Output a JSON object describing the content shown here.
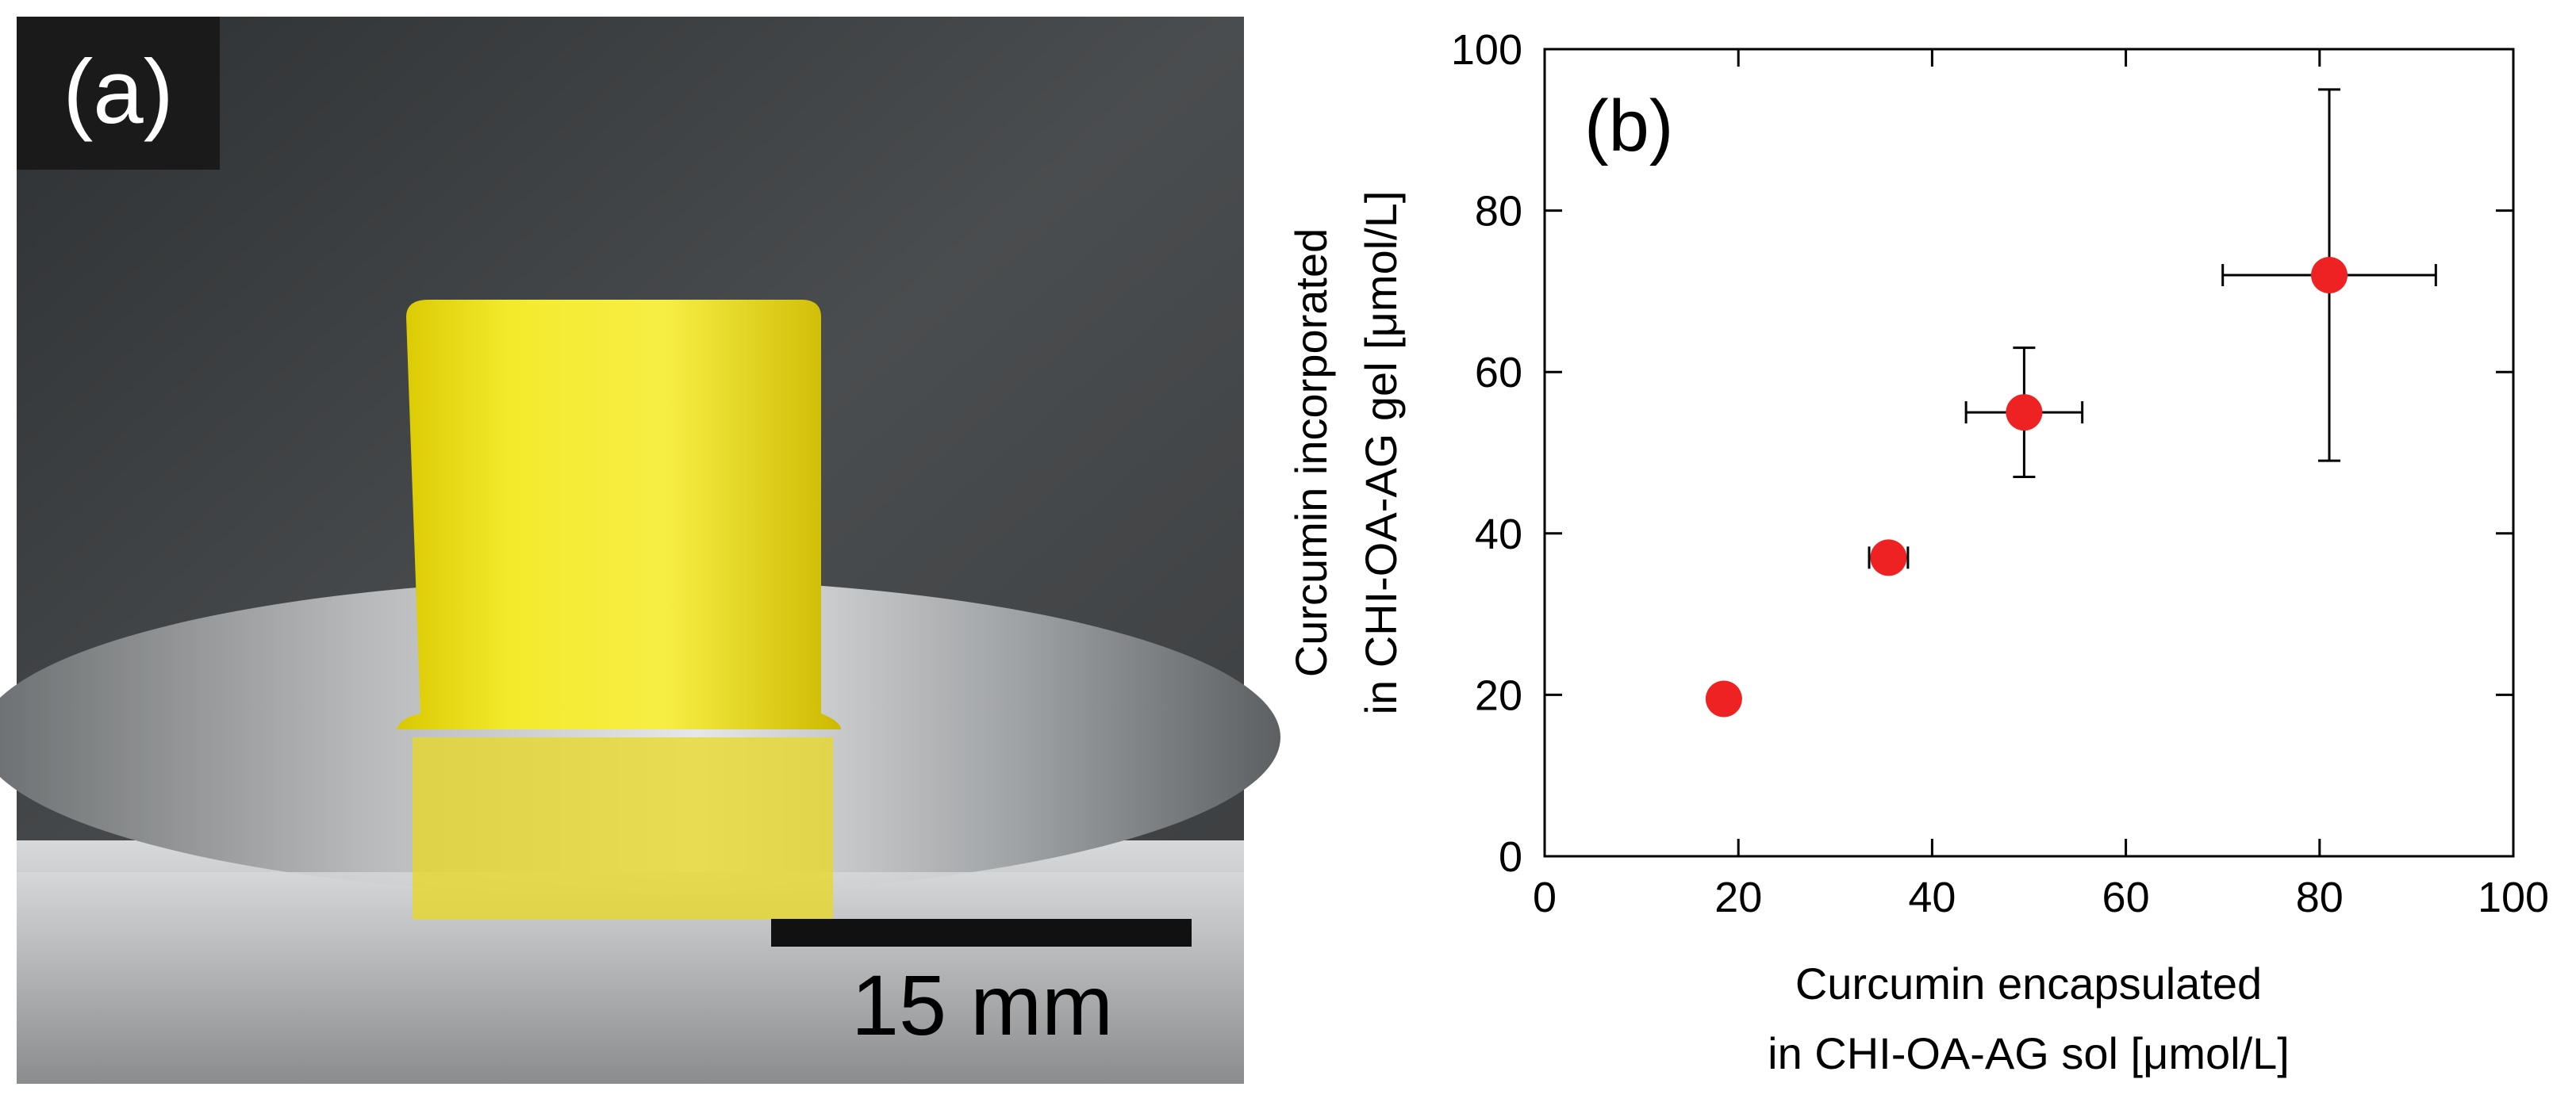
{
  "panel_a": {
    "label": "(a)",
    "scale_bar": "15 mm"
  },
  "chart_data": {
    "type": "scatter",
    "label": "(b)",
    "x_label": [
      "Curcumin encapsulated",
      "in CHI-OA-AG sol [μmol/L]"
    ],
    "y_label": [
      "Curcumin incorporated",
      "in CHI-OA-AG gel [μmol/L]"
    ],
    "xlim": [
      0,
      100
    ],
    "ylim": [
      0,
      100
    ],
    "xticks": [
      0,
      20,
      40,
      60,
      80,
      100
    ],
    "yticks": [
      0,
      20,
      40,
      60,
      80,
      100
    ],
    "series": [
      {
        "color": "#ee2222",
        "x": [
          18.5,
          35.5,
          49.5,
          81
        ],
        "values": [
          19.5,
          37,
          55,
          72
        ],
        "x_err": [
          null,
          2,
          6,
          11
        ],
        "y_err": [
          null,
          null,
          8,
          23
        ]
      }
    ]
  }
}
